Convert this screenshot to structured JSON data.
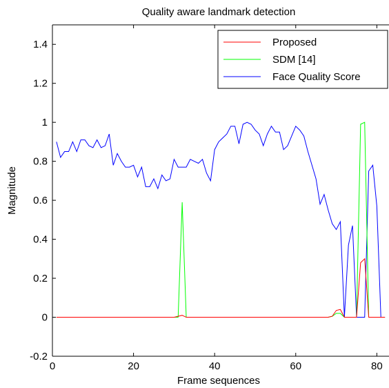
{
  "chart_data": {
    "type": "line",
    "title": "Quality aware landmark detection",
    "xlabel": "Frame sequences",
    "ylabel": "Magnitude",
    "xlim": [
      0,
      83
    ],
    "ylim": [
      -0.2,
      1.5
    ],
    "xticks": [
      0,
      20,
      40,
      60,
      80
    ],
    "yticks": [
      -0.2,
      0,
      0.2,
      0.4,
      0.6,
      0.8,
      1,
      1.2,
      1.4
    ],
    "grid": false,
    "legend_position": "top-right",
    "series": [
      {
        "name": "Proposed",
        "color": "#ff0000",
        "points": [
          [
            1,
            0
          ],
          [
            30,
            0
          ],
          [
            31,
            0.005
          ],
          [
            32,
            0.01
          ],
          [
            33,
            0
          ],
          [
            68,
            0
          ],
          [
            69,
            0.005
          ],
          [
            70,
            0.035
          ],
          [
            71,
            0.04
          ],
          [
            72,
            0
          ],
          [
            73,
            0
          ],
          [
            74,
            0
          ],
          [
            75,
            0
          ],
          [
            76,
            0.28
          ],
          [
            77,
            0.3
          ],
          [
            78,
            0
          ],
          [
            82,
            0
          ]
        ]
      },
      {
        "name": "SDM [14]",
        "color": "#00ff00",
        "points": [
          [
            1,
            0
          ],
          [
            31,
            0
          ],
          [
            32,
            0.59
          ],
          [
            33,
            0
          ],
          [
            68,
            0
          ],
          [
            69,
            0.005
          ],
          [
            70,
            0.02
          ],
          [
            71,
            0.02
          ],
          [
            72,
            0
          ],
          [
            74,
            0
          ],
          [
            75,
            0
          ],
          [
            76,
            0.99
          ],
          [
            77,
            1.0
          ],
          [
            78,
            0
          ],
          [
            82,
            0
          ]
        ]
      },
      {
        "name": "Face Quality Score",
        "color": "#0000ff",
        "points": [
          [
            1,
            0.9
          ],
          [
            2,
            0.82
          ],
          [
            3,
            0.85
          ],
          [
            4,
            0.85
          ],
          [
            5,
            0.9
          ],
          [
            6,
            0.85
          ],
          [
            7,
            0.91
          ],
          [
            8,
            0.91
          ],
          [
            9,
            0.88
          ],
          [
            10,
            0.87
          ],
          [
            11,
            0.91
          ],
          [
            12,
            0.87
          ],
          [
            13,
            0.88
          ],
          [
            14,
            0.94
          ],
          [
            15,
            0.78
          ],
          [
            16,
            0.84
          ],
          [
            17,
            0.8
          ],
          [
            18,
            0.77
          ],
          [
            19,
            0.77
          ],
          [
            20,
            0.78
          ],
          [
            21,
            0.72
          ],
          [
            22,
            0.77
          ],
          [
            23,
            0.67
          ],
          [
            24,
            0.67
          ],
          [
            25,
            0.71
          ],
          [
            26,
            0.66
          ],
          [
            27,
            0.73
          ],
          [
            28,
            0.7
          ],
          [
            29,
            0.71
          ],
          [
            30,
            0.81
          ],
          [
            31,
            0.77
          ],
          [
            32,
            0.77
          ],
          [
            33,
            0.77
          ],
          [
            34,
            0.81
          ],
          [
            35,
            0.8
          ],
          [
            36,
            0.79
          ],
          [
            37,
            0.81
          ],
          [
            38,
            0.74
          ],
          [
            39,
            0.7
          ],
          [
            40,
            0.86
          ],
          [
            41,
            0.9
          ],
          [
            42,
            0.92
          ],
          [
            43,
            0.94
          ],
          [
            44,
            0.98
          ],
          [
            45,
            0.98
          ],
          [
            46,
            0.89
          ],
          [
            47,
            0.99
          ],
          [
            48,
            1.0
          ],
          [
            49,
            0.99
          ],
          [
            50,
            0.96
          ],
          [
            51,
            0.94
          ],
          [
            52,
            0.88
          ],
          [
            53,
            0.94
          ],
          [
            54,
            0.98
          ],
          [
            55,
            0.95
          ],
          [
            56,
            0.95
          ],
          [
            57,
            0.86
          ],
          [
            58,
            0.88
          ],
          [
            59,
            0.93
          ],
          [
            60,
            0.98
          ],
          [
            61,
            0.96
          ],
          [
            62,
            0.93
          ],
          [
            63,
            0.85
          ],
          [
            64,
            0.78
          ],
          [
            65,
            0.71
          ],
          [
            66,
            0.58
          ],
          [
            67,
            0.63
          ],
          [
            68,
            0.55
          ],
          [
            69,
            0.48
          ],
          [
            70,
            0.45
          ],
          [
            71,
            0.49
          ],
          [
            72,
            0
          ],
          [
            73,
            0.37
          ],
          [
            74,
            0.47
          ],
          [
            75,
            0
          ],
          [
            76,
            0
          ],
          [
            77,
            0
          ],
          [
            78,
            0.75
          ],
          [
            79,
            0.78
          ],
          [
            80,
            0.57
          ],
          [
            81,
            0
          ],
          [
            82,
            0
          ]
        ]
      }
    ]
  }
}
